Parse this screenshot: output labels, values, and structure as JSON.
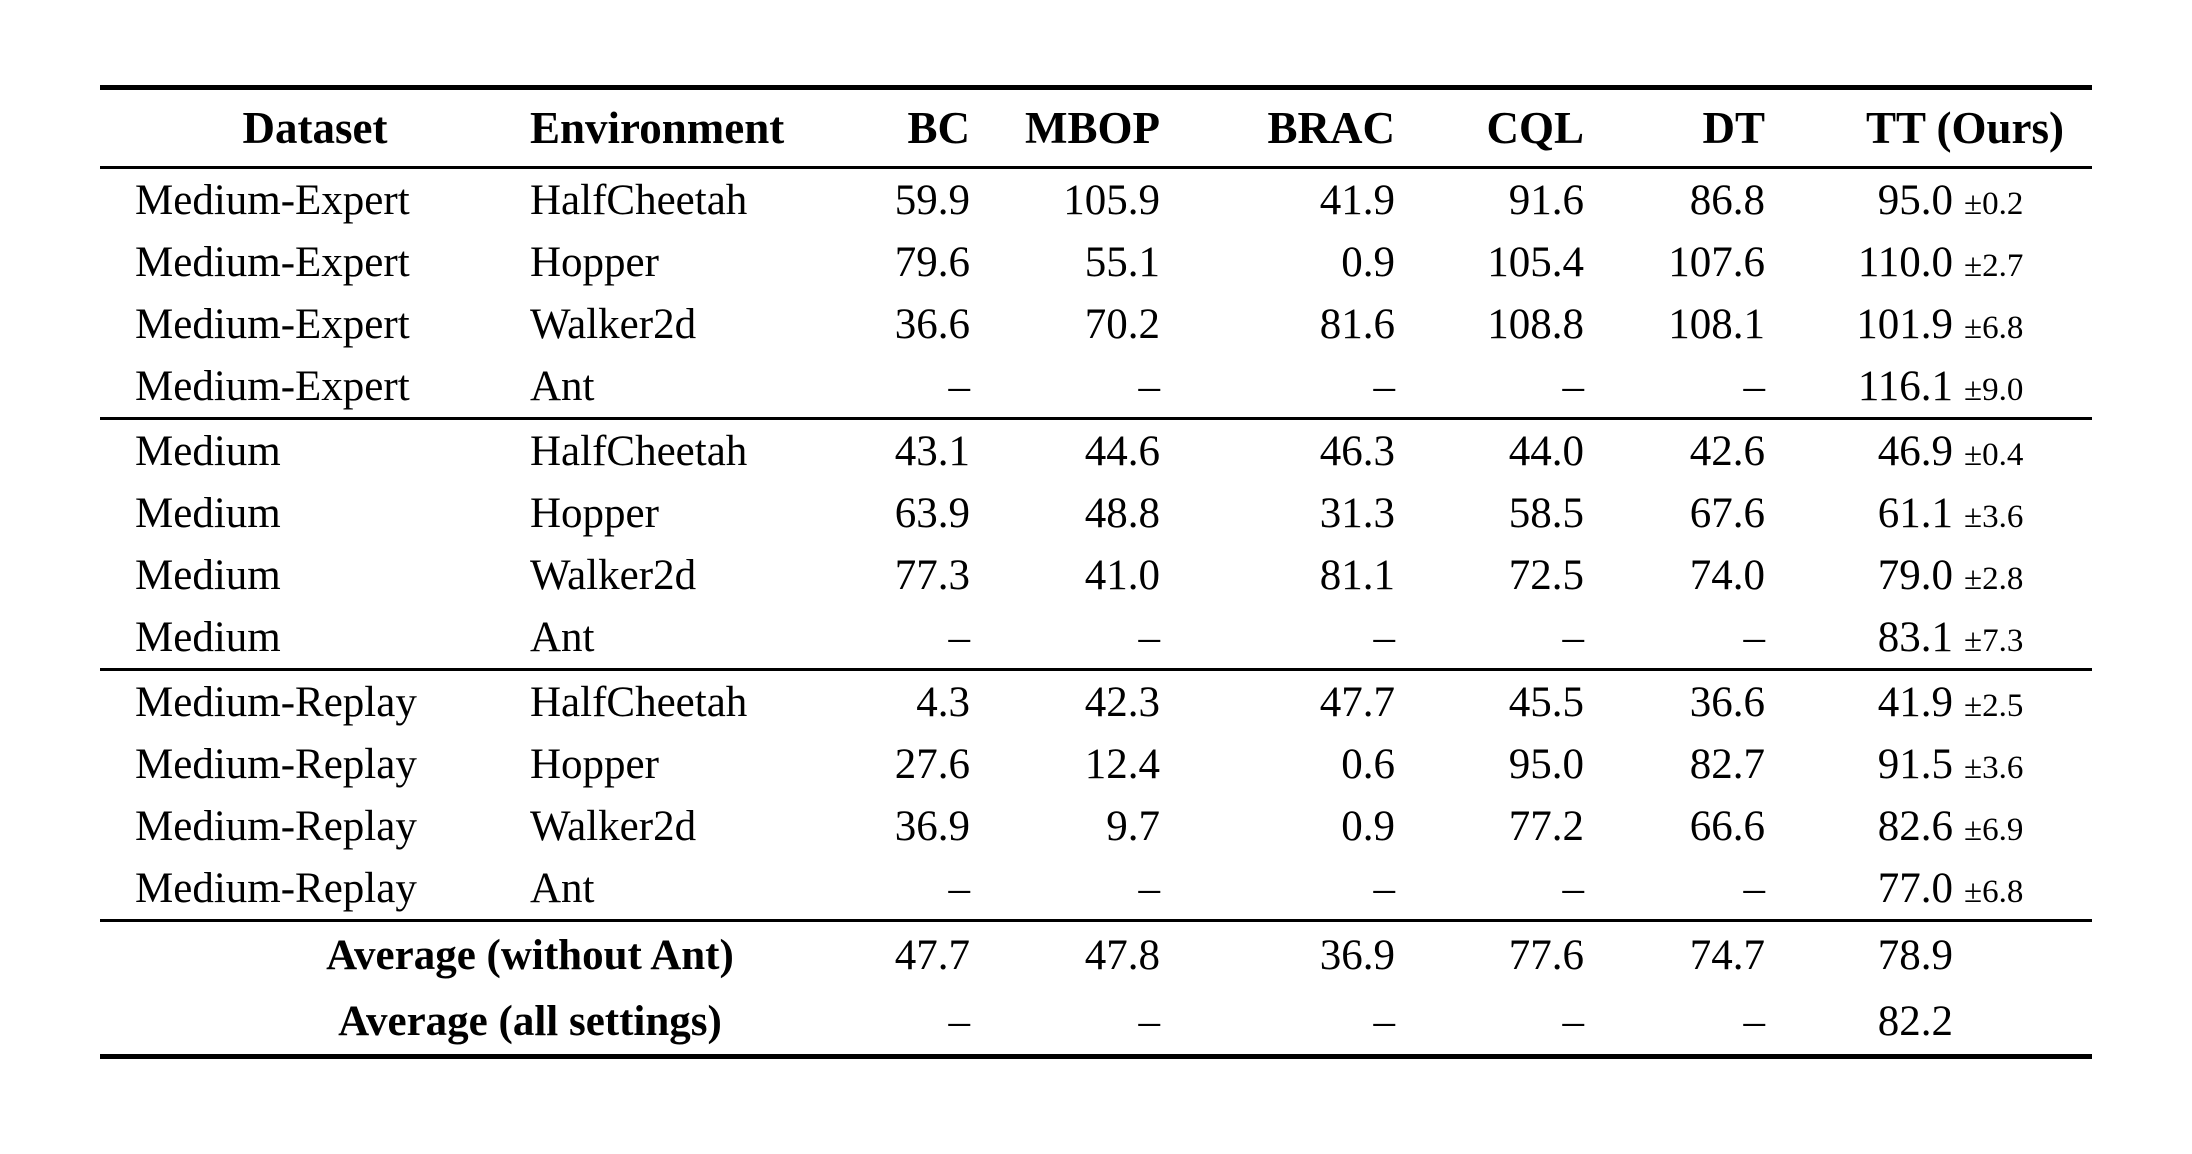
{
  "table": {
    "columns": [
      "Dataset",
      "Environment",
      "BC",
      "MBOP",
      "BRAC",
      "CQL",
      "DT",
      "TT (Ours)"
    ],
    "dash": "–",
    "groups": [
      {
        "name": "Medium-Expert",
        "rows": [
          {
            "dataset": "Medium-Expert",
            "environment": "HalfCheetah",
            "values": [
              "59.9",
              "105.9",
              "41.9",
              "91.6",
              "86.8"
            ],
            "tt": "95.0",
            "tt_err": "±0.2"
          },
          {
            "dataset": "Medium-Expert",
            "environment": "Hopper",
            "values": [
              "79.6",
              "55.1",
              "0.9",
              "105.4",
              "107.6"
            ],
            "tt": "110.0",
            "tt_err": "±2.7"
          },
          {
            "dataset": "Medium-Expert",
            "environment": "Walker2d",
            "values": [
              "36.6",
              "70.2",
              "81.6",
              "108.8",
              "108.1"
            ],
            "tt": "101.9",
            "tt_err": "±6.8"
          },
          {
            "dataset": "Medium-Expert",
            "environment": "Ant",
            "values": [
              "–",
              "–",
              "–",
              "–",
              "–"
            ],
            "tt": "116.1",
            "tt_err": "±9.0"
          }
        ]
      },
      {
        "name": "Medium",
        "rows": [
          {
            "dataset": "Medium",
            "environment": "HalfCheetah",
            "values": [
              "43.1",
              "44.6",
              "46.3",
              "44.0",
              "42.6"
            ],
            "tt": "46.9",
            "tt_err": "±0.4"
          },
          {
            "dataset": "Medium",
            "environment": "Hopper",
            "values": [
              "63.9",
              "48.8",
              "31.3",
              "58.5",
              "67.6"
            ],
            "tt": "61.1",
            "tt_err": "±3.6"
          },
          {
            "dataset": "Medium",
            "environment": "Walker2d",
            "values": [
              "77.3",
              "41.0",
              "81.1",
              "72.5",
              "74.0"
            ],
            "tt": "79.0",
            "tt_err": "±2.8"
          },
          {
            "dataset": "Medium",
            "environment": "Ant",
            "values": [
              "–",
              "–",
              "–",
              "–",
              "–"
            ],
            "tt": "83.1",
            "tt_err": "±7.3"
          }
        ]
      },
      {
        "name": "Medium-Replay",
        "rows": [
          {
            "dataset": "Medium-Replay",
            "environment": "HalfCheetah",
            "values": [
              "4.3",
              "42.3",
              "47.7",
              "45.5",
              "36.6"
            ],
            "tt": "41.9",
            "tt_err": "±2.5"
          },
          {
            "dataset": "Medium-Replay",
            "environment": "Hopper",
            "values": [
              "27.6",
              "12.4",
              "0.6",
              "95.0",
              "82.7"
            ],
            "tt": "91.5",
            "tt_err": "±3.6"
          },
          {
            "dataset": "Medium-Replay",
            "environment": "Walker2d",
            "values": [
              "36.9",
              "9.7",
              "0.9",
              "77.2",
              "66.6"
            ],
            "tt": "82.6",
            "tt_err": "±6.9"
          },
          {
            "dataset": "Medium-Replay",
            "environment": "Ant",
            "values": [
              "–",
              "–",
              "–",
              "–",
              "–"
            ],
            "tt": "77.0",
            "tt_err": "±6.8"
          }
        ]
      }
    ],
    "summary": [
      {
        "label": "Average (without Ant)",
        "values": [
          "47.7",
          "47.8",
          "36.9",
          "77.6",
          "74.7"
        ],
        "tt": "78.9",
        "tt_err": ""
      },
      {
        "label": "Average (all settings)",
        "values": [
          "–",
          "–",
          "–",
          "–",
          "–"
        ],
        "tt": "82.2",
        "tt_err": ""
      }
    ]
  }
}
